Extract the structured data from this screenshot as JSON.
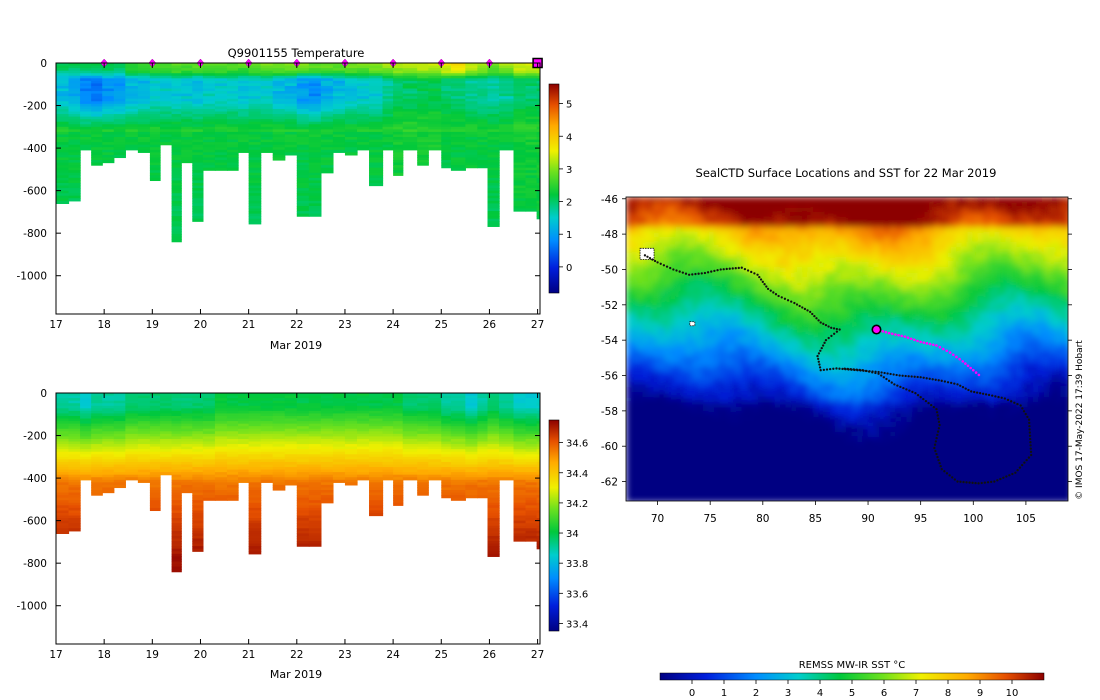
{
  "top_panel": {
    "title": "Q9901155  Temperature",
    "xlabel": "Mar 2019",
    "colorbar_ticks": [
      "0",
      "1",
      "2",
      "3",
      "4",
      "5"
    ]
  },
  "bottom_panel": {
    "xlabel": "Mar 2019",
    "colorbar_ticks": [
      "33.4",
      "33.6",
      "33.8",
      "34",
      "34.2",
      "34.4",
      "34.6"
    ]
  },
  "map_panel": {
    "title": "SealCTD Surface Locations and SST for 22 Mar 2019",
    "colorbar_label": "REMSS MW-IR SST °C",
    "colorbar_ticks": [
      "0",
      "1",
      "2",
      "3",
      "4",
      "5",
      "6",
      "7",
      "8",
      "9",
      "10"
    ],
    "credit": "© IMOS 17-May-2022 17:39 Hobart"
  },
  "chart_data": [
    {
      "type": "heatmap",
      "name": "temperature-section",
      "title": "Q9901155  Temperature",
      "xlabel": "Mar 2019",
      "ylabel": "",
      "x_ticks": [
        "17",
        "18",
        "19",
        "20",
        "21",
        "22",
        "23",
        "24",
        "25",
        "26",
        "27"
      ],
      "y_ticks": [
        "0",
        "-200",
        "-400",
        "-600",
        "-800",
        "-1000"
      ],
      "xlim": [
        17,
        27.05
      ],
      "ylim": [
        -1180,
        0
      ],
      "color_range": [
        -0.8,
        5.6
      ],
      "colorbar_ticks": [
        0,
        1,
        2,
        3,
        4,
        5
      ],
      "surface_marker_days": [
        18,
        19,
        20,
        21,
        22,
        23,
        24,
        25,
        26
      ],
      "current_day": 27,
      "profiles": [
        {
          "start": 17.0,
          "end": 17.26,
          "max_depth": 650,
          "surface": 2.2,
          "min": 1.3,
          "deep": 2.0
        },
        {
          "start": 17.26,
          "end": 17.5,
          "max_depth": 645,
          "surface": 2.2,
          "min": 1.1,
          "deep": 2.0
        },
        {
          "start": 17.5,
          "end": 17.73,
          "max_depth": 400,
          "surface": 2.2,
          "min": 0.7,
          "deep": 2.0
        },
        {
          "start": 17.73,
          "end": 17.96,
          "max_depth": 470,
          "surface": 2.3,
          "min": 0.6,
          "deep": 2.0
        },
        {
          "start": 17.96,
          "end": 18.2,
          "max_depth": 460,
          "surface": 2.3,
          "min": 0.9,
          "deep": 2.0
        },
        {
          "start": 18.2,
          "end": 18.44,
          "max_depth": 440,
          "surface": 2.1,
          "min": 1.0,
          "deep": 2.0
        },
        {
          "start": 18.44,
          "end": 18.7,
          "max_depth": 400,
          "surface": 2.6,
          "min": 1.2,
          "deep": 2.0
        },
        {
          "start": 18.7,
          "end": 18.95,
          "max_depth": 410,
          "surface": 2.6,
          "min": 1.3,
          "deep": 2.0
        },
        {
          "start": 18.95,
          "end": 19.16,
          "max_depth": 550,
          "surface": 2.8,
          "min": 1.5,
          "deep": 2.0
        },
        {
          "start": 19.16,
          "end": 19.4,
          "max_depth": 380,
          "surface": 2.7,
          "min": 1.5,
          "deep": 2.0
        },
        {
          "start": 19.4,
          "end": 19.6,
          "max_depth": 835,
          "surface": 2.9,
          "min": 1.4,
          "deep": 2.0
        },
        {
          "start": 19.6,
          "end": 19.83,
          "max_depth": 460,
          "surface": 2.8,
          "min": 1.4,
          "deep": 2.0
        },
        {
          "start": 19.83,
          "end": 20.05,
          "max_depth": 735,
          "surface": 2.9,
          "min": 1.3,
          "deep": 2.0
        },
        {
          "start": 20.05,
          "end": 20.3,
          "max_depth": 500,
          "surface": 2.9,
          "min": 1.5,
          "deep": 2.0
        },
        {
          "start": 20.3,
          "end": 20.55,
          "max_depth": 500,
          "surface": 2.9,
          "min": 1.5,
          "deep": 2.0
        },
        {
          "start": 20.55,
          "end": 20.78,
          "max_depth": 500,
          "surface": 2.8,
          "min": 1.5,
          "deep": 2.0
        },
        {
          "start": 20.78,
          "end": 21.0,
          "max_depth": 420,
          "surface": 2.8,
          "min": 1.4,
          "deep": 2.0
        },
        {
          "start": 21.0,
          "end": 21.25,
          "max_depth": 750,
          "surface": 2.9,
          "min": 1.5,
          "deep": 2.0
        },
        {
          "start": 21.25,
          "end": 21.5,
          "max_depth": 410,
          "surface": 3.0,
          "min": 1.5,
          "deep": 2.0
        },
        {
          "start": 21.5,
          "end": 21.75,
          "max_depth": 450,
          "surface": 3.0,
          "min": 1.3,
          "deep": 2.0
        },
        {
          "start": 21.75,
          "end": 22.0,
          "max_depth": 430,
          "surface": 3.1,
          "min": 1.2,
          "deep": 2.0
        },
        {
          "start": 22.0,
          "end": 22.25,
          "max_depth": 720,
          "surface": 3.0,
          "min": 0.9,
          "deep": 2.0
        },
        {
          "start": 22.25,
          "end": 22.5,
          "max_depth": 720,
          "surface": 2.9,
          "min": 0.8,
          "deep": 2.0
        },
        {
          "start": 22.5,
          "end": 22.75,
          "max_depth": 510,
          "surface": 2.9,
          "min": 1.1,
          "deep": 2.0
        },
        {
          "start": 22.75,
          "end": 23.0,
          "max_depth": 410,
          "surface": 2.9,
          "min": 1.3,
          "deep": 2.0
        },
        {
          "start": 23.0,
          "end": 23.25,
          "max_depth": 430,
          "surface": 3.0,
          "min": 1.4,
          "deep": 2.0
        },
        {
          "start": 23.25,
          "end": 23.5,
          "max_depth": 400,
          "surface": 3.0,
          "min": 1.5,
          "deep": 2.0
        },
        {
          "start": 23.5,
          "end": 23.78,
          "max_depth": 565,
          "surface": 3.1,
          "min": 1.5,
          "deep": 2.0
        },
        {
          "start": 23.78,
          "end": 24.0,
          "max_depth": 400,
          "surface": 3.2,
          "min": 1.8,
          "deep": 2.0
        },
        {
          "start": 24.0,
          "end": 24.2,
          "max_depth": 525,
          "surface": 3.3,
          "min": 2.0,
          "deep": 2.1
        },
        {
          "start": 24.2,
          "end": 24.5,
          "max_depth": 400,
          "surface": 3.3,
          "min": 2.0,
          "deep": 2.1
        },
        {
          "start": 24.5,
          "end": 24.73,
          "max_depth": 475,
          "surface": 3.4,
          "min": 2.1,
          "deep": 2.1
        },
        {
          "start": 24.73,
          "end": 25.0,
          "max_depth": 400,
          "surface": 3.4,
          "min": 2.1,
          "deep": 2.1
        },
        {
          "start": 25.0,
          "end": 25.2,
          "max_depth": 490,
          "surface": 3.6,
          "min": 2.0,
          "deep": 2.0
        },
        {
          "start": 25.2,
          "end": 25.5,
          "max_depth": 495,
          "surface": 3.8,
          "min": 1.9,
          "deep": 2.0
        },
        {
          "start": 25.5,
          "end": 25.75,
          "max_depth": 490,
          "surface": 3.4,
          "min": 1.8,
          "deep": 2.0
        },
        {
          "start": 25.75,
          "end": 25.96,
          "max_depth": 490,
          "surface": 3.2,
          "min": 1.7,
          "deep": 2.0
        },
        {
          "start": 25.96,
          "end": 26.2,
          "max_depth": 765,
          "surface": 3.0,
          "min": 1.7,
          "deep": 2.0
        },
        {
          "start": 26.2,
          "end": 26.5,
          "max_depth": 400,
          "surface": 3.2,
          "min": 1.8,
          "deep": 2.0
        },
        {
          "start": 26.5,
          "end": 26.75,
          "max_depth": 695,
          "surface": 3.5,
          "min": 2.0,
          "deep": 2.1
        },
        {
          "start": 26.75,
          "end": 26.98,
          "max_depth": 695,
          "surface": 3.5,
          "min": 2.0,
          "deep": 2.1
        },
        {
          "start": 26.98,
          "end": 27.05,
          "max_depth": 725,
          "surface": 3.5,
          "min": 2.0,
          "deep": 2.1
        }
      ]
    },
    {
      "type": "heatmap",
      "name": "salinity-section",
      "title": "",
      "xlabel": "Mar 2019",
      "ylabel": "",
      "x_ticks": [
        "17",
        "18",
        "19",
        "20",
        "21",
        "22",
        "23",
        "24",
        "25",
        "26",
        "27"
      ],
      "y_ticks": [
        "0",
        "-200",
        "-400",
        "-600",
        "-800",
        "-1000"
      ],
      "xlim": [
        17,
        27.05
      ],
      "ylim": [
        -1180,
        0
      ],
      "color_range": [
        33.35,
        34.75
      ],
      "colorbar_ticks": [
        33.4,
        33.6,
        33.8,
        34.0,
        34.2,
        34.4,
        34.6
      ],
      "surface_salinity": [
        33.9,
        33.9,
        33.85,
        33.9,
        33.9,
        33.9,
        33.95,
        33.95,
        33.95,
        33.95,
        33.95,
        33.95,
        33.95,
        33.95,
        34.0,
        34.0,
        34.0,
        34.0,
        34.0,
        34.0,
        34.0,
        34.0,
        34.0,
        34.0,
        34.0,
        34.0,
        34.0,
        34.0,
        34.0,
        34.0,
        33.95,
        33.95,
        33.95,
        33.9,
        33.9,
        33.85,
        33.9,
        33.95,
        33.9,
        33.85,
        33.85,
        33.85
      ],
      "deep_salinity": 34.72
    },
    {
      "type": "heatmap",
      "name": "sst-map",
      "title": "SealCTD Surface Locations and SST for 22 Mar 2019",
      "xlabel": "",
      "ylabel": "",
      "x_ticks": [
        "70",
        "75",
        "80",
        "85",
        "90",
        "95",
        "100",
        "105"
      ],
      "y_ticks": [
        "-46",
        "-48",
        "-50",
        "-52",
        "-54",
        "-56",
        "-58",
        "-60",
        "-62"
      ],
      "xlim": [
        67,
        109
      ],
      "ylim": [
        -63.1,
        -45.9
      ],
      "color_range": [
        -1,
        11
      ],
      "colorbar_label": "REMSS MW-IR SST °C",
      "colorbar_ticks": [
        0,
        1,
        2,
        3,
        4,
        5,
        6,
        7,
        8,
        9,
        10
      ],
      "track_lon": [
        68.8,
        70.0,
        71.5,
        73.0,
        74.5,
        76.0,
        78.0,
        79.5,
        80.5,
        81.5,
        83.0,
        84.5,
        85.5,
        86.5,
        87.3,
        86.0,
        85.2,
        85.5,
        87.0,
        89.0,
        91.0,
        93.0,
        95.0,
        97.0,
        98.5,
        99.8,
        101.5,
        103.0,
        104.5,
        105.3,
        105.5,
        104.0,
        102.0,
        100.5,
        98.5,
        97.0,
        96.3,
        96.8,
        96.5,
        94.5,
        92.5,
        91.0,
        89.5,
        87.5
      ],
      "track_lat": [
        -49.2,
        -49.6,
        -50.0,
        -50.3,
        -50.2,
        -50.0,
        -49.9,
        -50.3,
        -51.1,
        -51.5,
        -51.9,
        -52.4,
        -53.0,
        -53.3,
        -53.4,
        -54.0,
        -54.9,
        -55.7,
        -55.6,
        -55.7,
        -55.8,
        -56.0,
        -56.1,
        -56.3,
        -56.5,
        -56.9,
        -57.1,
        -57.3,
        -57.7,
        -58.5,
        -60.5,
        -61.5,
        -62.0,
        -62.1,
        -62.0,
        -61.3,
        -60.1,
        -58.8,
        -57.9,
        -57.0,
        -56.5,
        -55.9,
        -55.7,
        -55.6
      ],
      "recent_track_lon": [
        90.8,
        92.0,
        93.5,
        95.0,
        96.5,
        97.8,
        99.0,
        100.0,
        100.8
      ],
      "recent_track_lat": [
        -53.4,
        -53.6,
        -53.8,
        -54.1,
        -54.3,
        -54.7,
        -55.2,
        -55.7,
        -56.1
      ],
      "current_position": {
        "lon": 90.8,
        "lat": -53.4
      },
      "land_points": [
        {
          "lon": 69.0,
          "lat": -49.2
        },
        {
          "lon": 73.3,
          "lat": -53.1
        }
      ]
    }
  ]
}
